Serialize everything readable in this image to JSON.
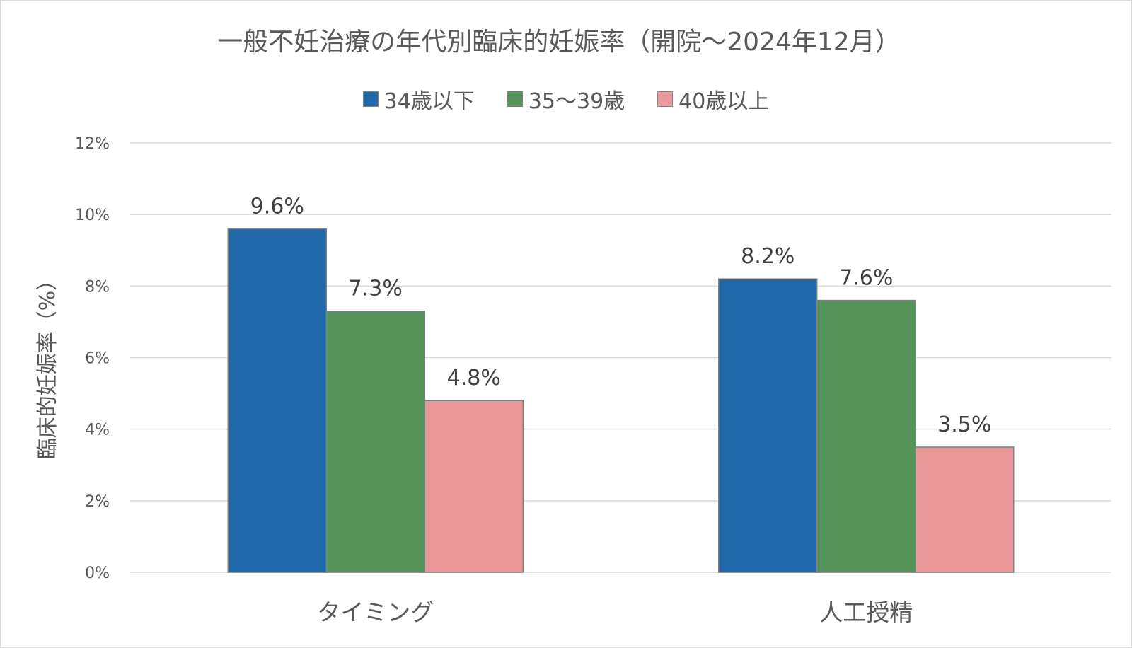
{
  "chart_data": {
    "type": "bar",
    "title": "一般不妊治療の年代別臨床的妊娠率（開院〜2024年12月）",
    "xlabel": "",
    "ylabel": "臨床的妊娠率（%）",
    "ylim": [
      0,
      12
    ],
    "yticks": [
      0,
      2,
      4,
      6,
      8,
      10,
      12
    ],
    "ytick_labels": [
      "0%",
      "2%",
      "4%",
      "6%",
      "8%",
      "10%",
      "12%"
    ],
    "grid": true,
    "legend_position": "top",
    "categories": [
      "タイミング",
      "人工授精"
    ],
    "series": [
      {
        "name": "34歳以下",
        "values": [
          9.6,
          8.2
        ],
        "labels": [
          "9.6%",
          "8.2%"
        ],
        "color": "#1f69aa"
      },
      {
        "name": "35〜39歳",
        "values": [
          7.3,
          7.6
        ],
        "labels": [
          "7.3%",
          "7.6%"
        ],
        "color": "#56935a"
      },
      {
        "name": "40歳以上",
        "values": [
          4.8,
          3.5
        ],
        "labels": [
          "4.8%",
          "3.5%"
        ],
        "color": "#ea9899"
      }
    ]
  }
}
